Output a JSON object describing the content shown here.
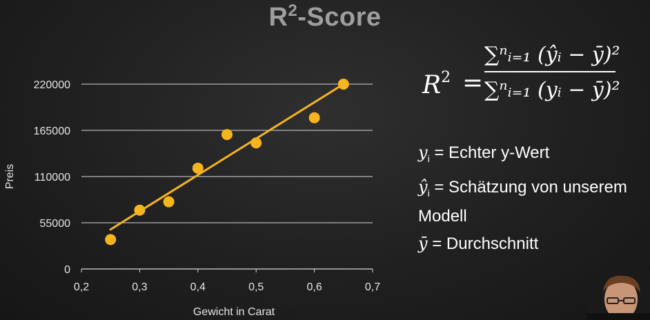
{
  "title": {
    "main": "R",
    "sup": "2",
    "rest": "-Score"
  },
  "formula": {
    "lhs": "R",
    "lhs_exp": "2",
    "numerator": "∑ⁿᵢ₌₁ (ŷᵢ − ȳ)²",
    "denominator": "∑ⁿᵢ₌₁ (yᵢ − ȳ)²"
  },
  "definitions": [
    {
      "symbol": "y",
      "sub": "i",
      "text": " = Echter y-Wert"
    },
    {
      "symbol": "ŷ",
      "sub": "i",
      "text": " = Schätzung von unserem Modell"
    },
    {
      "symbol": "ȳ",
      "sub": "",
      "text": " = Durchschnitt"
    }
  ],
  "chart_data": {
    "type": "scatter",
    "xlabel": "Gewicht in Carat",
    "ylabel": "Preis",
    "xlim": [
      0.2,
      0.7
    ],
    "ylim": [
      0,
      220000
    ],
    "xticks": [
      "0,2",
      "0,3",
      "0,4",
      "0,5",
      "0,6",
      "0,7"
    ],
    "xtick_values": [
      0.2,
      0.3,
      0.4,
      0.5,
      0.6,
      0.7
    ],
    "yticks": [
      "0",
      "55000",
      "110000",
      "165000",
      "220000"
    ],
    "ytick_values": [
      0,
      55000,
      110000,
      165000,
      220000
    ],
    "grid": "horizontal",
    "points": {
      "x": [
        0.25,
        0.3,
        0.35,
        0.4,
        0.45,
        0.5,
        0.6,
        0.65
      ],
      "y": [
        35000,
        70000,
        80000,
        120000,
        160000,
        150000,
        180000,
        220000
      ]
    },
    "regression_line": {
      "x": [
        0.25,
        0.65
      ],
      "y": [
        47000,
        220000
      ]
    },
    "colors": {
      "points": "#f6b51c",
      "line": "#f6b51c",
      "grid": "#d9d9d9",
      "text": "#e6e6e6"
    }
  }
}
